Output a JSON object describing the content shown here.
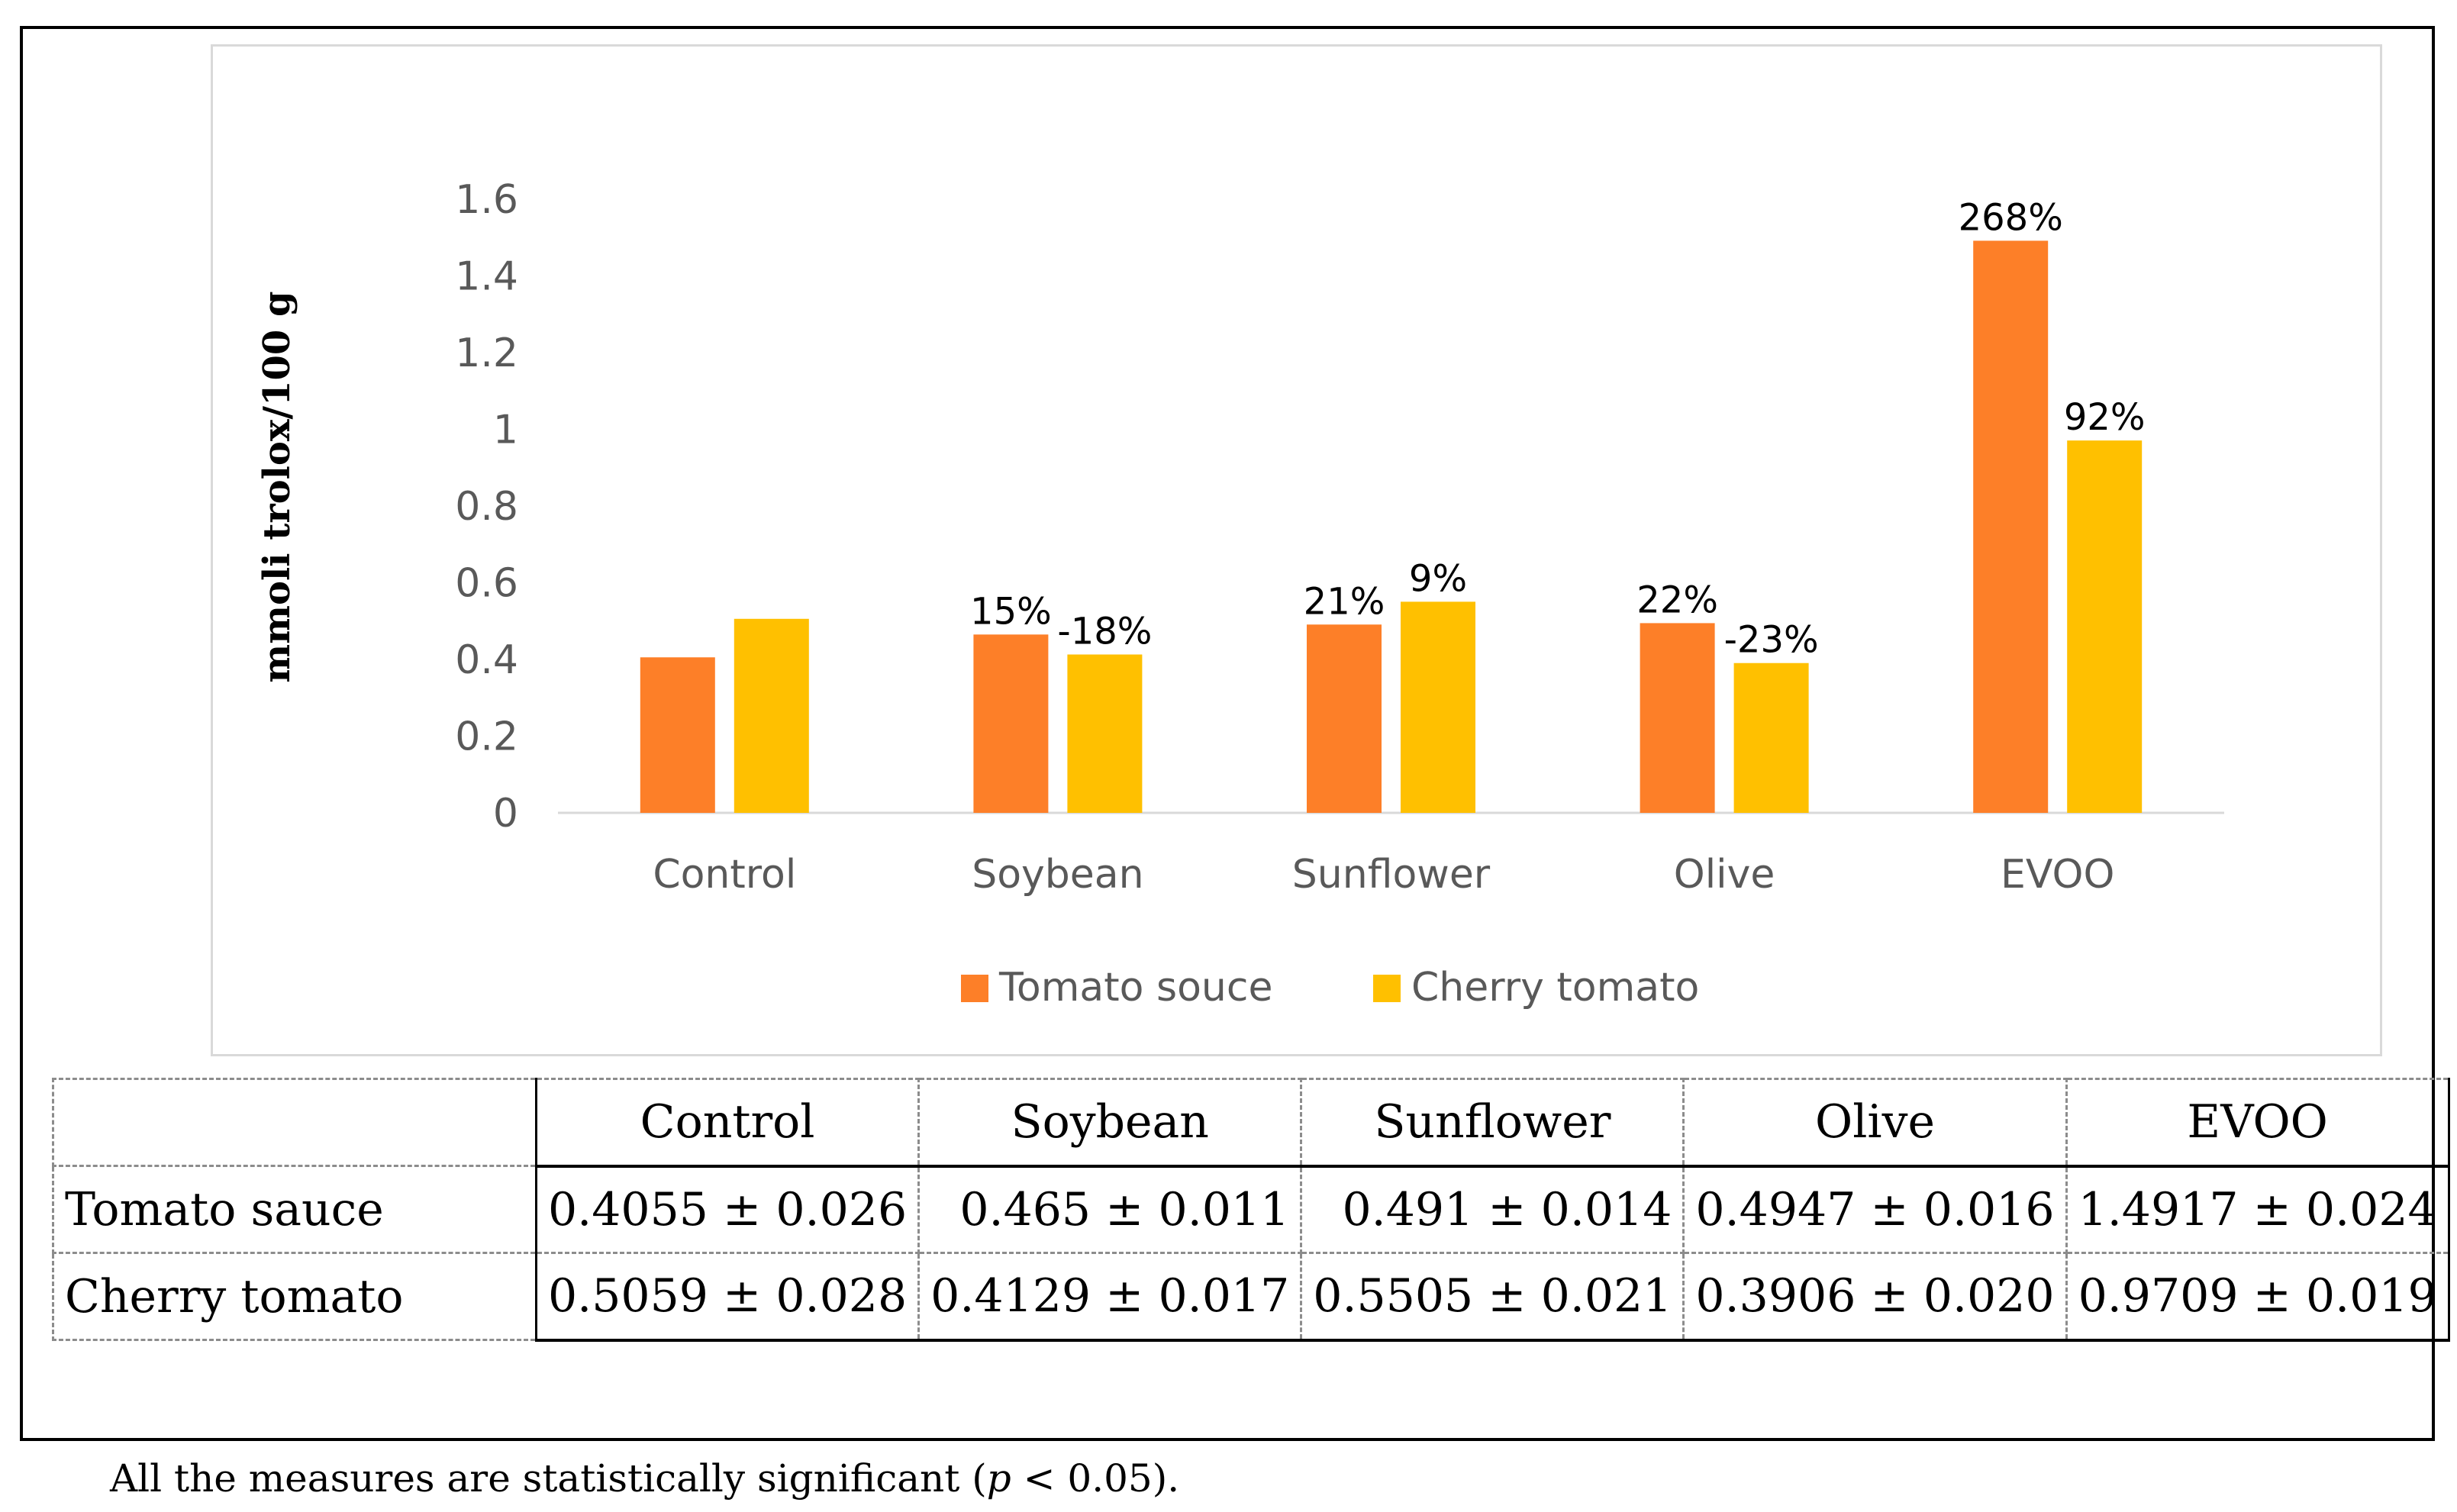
{
  "chart_data": {
    "type": "bar",
    "title": "",
    "xlabel": "",
    "ylabel": "mmoli trolox/100 g",
    "ylim": [
      0,
      1.6
    ],
    "yticks": [
      "0",
      "0.2",
      "0.4",
      "0.6",
      "0.8",
      "1",
      "1.2",
      "1.4",
      "1.6"
    ],
    "categories": [
      "Control",
      "Soybean",
      "Sunflower",
      "Olive",
      "EVOO"
    ],
    "series": [
      {
        "name": "Tomato souce",
        "color": "#fd7f28",
        "values": [
          0.4055,
          0.465,
          0.491,
          0.4947,
          1.4917
        ],
        "labels": [
          "",
          "15%",
          "21%",
          "22%",
          "268%"
        ]
      },
      {
        "name": "Cherry tomato",
        "color": "#ffc000",
        "values": [
          0.5059,
          0.4129,
          0.5505,
          0.3906,
          0.9709
        ],
        "labels": [
          "",
          "-18%",
          "9%",
          "-23%",
          "92%"
        ]
      }
    ],
    "legend_position": "bottom"
  },
  "table": {
    "columns": [
      "Control",
      "Soybean",
      "Sunflower",
      "Olive",
      "EVOO"
    ],
    "rows": [
      {
        "label": "Tomato sauce",
        "cells": [
          "0.4055 ± 0.026",
          "0.465 ± 0.011",
          "0.491 ± 0.014",
          "0.4947 ± 0.016",
          "1.4917 ± 0.024"
        ]
      },
      {
        "label": "Cherry tomato",
        "cells": [
          "0.5059 ± 0.028",
          "0.4129 ± 0.017",
          "0.5505 ± 0.021",
          "0.3906 ± 0.020",
          "0.9709 ± 0.019"
        ]
      }
    ]
  },
  "footnote": {
    "before": "All the measures are statistically significant (",
    "pvar": "p",
    "after": " < 0.05)."
  }
}
